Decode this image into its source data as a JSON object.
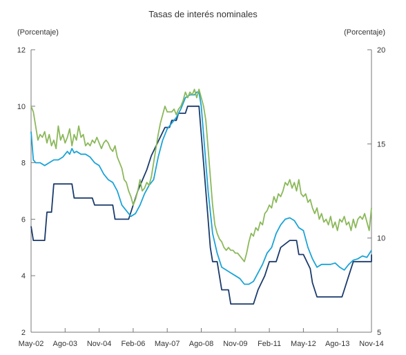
{
  "chart_data": {
    "type": "line",
    "title": "Tasas de interés nominales",
    "ylabel_left": "(Porcentaje)",
    "ylabel_right": "(Porcentaje)",
    "y_left_lim": [
      2,
      12
    ],
    "y_left_ticks": [
      "2",
      "4",
      "6",
      "8",
      "10",
      "12"
    ],
    "y_right_lim": [
      5,
      20
    ],
    "y_right_ticks": [
      "5",
      "10",
      "15",
      "20"
    ],
    "x_range": [
      0,
      150
    ],
    "x_ticks": [
      {
        "x": 0,
        "label": "May-02"
      },
      {
        "x": 15,
        "label": "Ago-03"
      },
      {
        "x": 30,
        "label": "Nov-04"
      },
      {
        "x": 45,
        "label": "Feb-06"
      },
      {
        "x": 60,
        "label": "May-07"
      },
      {
        "x": 75,
        "label": "Ago-08"
      },
      {
        "x": 90,
        "label": "Nov-09"
      },
      {
        "x": 105,
        "label": "Feb-11"
      },
      {
        "x": 120,
        "label": "May-12"
      },
      {
        "x": 135,
        "label": "Ago-13"
      },
      {
        "x": 150,
        "label": "Nov-14"
      }
    ],
    "series": [
      {
        "color": "#1a3a6b",
        "axis": "left",
        "points": [
          [
            0,
            5.75
          ],
          [
            1,
            5.25
          ],
          [
            6,
            5.25
          ],
          [
            7,
            6.25
          ],
          [
            9,
            6.25
          ],
          [
            10,
            7.25
          ],
          [
            18,
            7.25
          ],
          [
            19,
            6.75
          ],
          [
            27,
            6.75
          ],
          [
            28,
            6.5
          ],
          [
            36,
            6.5
          ],
          [
            37,
            6.0
          ],
          [
            43,
            6.0
          ],
          [
            45,
            6.5
          ],
          [
            47,
            7.0
          ],
          [
            51,
            7.75
          ],
          [
            53,
            8.25
          ],
          [
            56,
            8.75
          ],
          [
            59,
            9.25
          ],
          [
            61,
            9.25
          ],
          [
            62,
            9.5
          ],
          [
            64,
            9.5
          ],
          [
            65,
            9.75
          ],
          [
            68,
            9.75
          ],
          [
            69,
            10.0
          ],
          [
            73,
            10.0
          ],
          [
            74,
            10.0
          ],
          [
            75,
            9.0
          ],
          [
            76,
            8.0
          ],
          [
            77,
            7.0
          ],
          [
            78,
            6.0
          ],
          [
            79,
            5.0
          ],
          [
            80,
            4.5
          ],
          [
            82,
            4.5
          ],
          [
            83,
            4.0
          ],
          [
            84,
            3.5
          ],
          [
            87,
            3.5
          ],
          [
            88,
            3.0
          ],
          [
            98,
            3.0
          ],
          [
            100,
            3.5
          ],
          [
            103,
            4.0
          ],
          [
            105,
            4.5
          ],
          [
            108,
            4.5
          ],
          [
            110,
            5.0
          ],
          [
            114,
            5.25
          ],
          [
            117,
            5.25
          ],
          [
            118,
            4.75
          ],
          [
            120,
            4.75
          ],
          [
            123,
            4.25
          ],
          [
            124,
            3.75
          ],
          [
            126,
            3.25
          ],
          [
            137,
            3.25
          ],
          [
            138,
            3.5
          ],
          [
            140,
            4.0
          ],
          [
            142,
            4.5
          ],
          [
            150,
            4.5
          ],
          [
            150,
            4.75
          ]
        ]
      },
      {
        "color": "#1aa3d6",
        "axis": "left",
        "points": [
          [
            0,
            9.1
          ],
          [
            1,
            8.1
          ],
          [
            2,
            8.0
          ],
          [
            4,
            8.0
          ],
          [
            6,
            7.9
          ],
          [
            8,
            8.0
          ],
          [
            10,
            8.1
          ],
          [
            12,
            8.1
          ],
          [
            14,
            8.2
          ],
          [
            16,
            8.4
          ],
          [
            17,
            8.3
          ],
          [
            18,
            8.5
          ],
          [
            19,
            8.35
          ],
          [
            20,
            8.4
          ],
          [
            22,
            8.3
          ],
          [
            24,
            8.3
          ],
          [
            26,
            8.2
          ],
          [
            28,
            8.0
          ],
          [
            30,
            7.9
          ],
          [
            32,
            7.6
          ],
          [
            34,
            7.4
          ],
          [
            36,
            7.3
          ],
          [
            38,
            7.0
          ],
          [
            40,
            6.5
          ],
          [
            42,
            6.3
          ],
          [
            44,
            6.1
          ],
          [
            46,
            6.2
          ],
          [
            48,
            6.5
          ],
          [
            50,
            6.9
          ],
          [
            52,
            7.2
          ],
          [
            54,
            7.4
          ],
          [
            56,
            8.2
          ],
          [
            58,
            8.8
          ],
          [
            60,
            9.2
          ],
          [
            62,
            9.4
          ],
          [
            64,
            9.6
          ],
          [
            66,
            9.9
          ],
          [
            68,
            10.3
          ],
          [
            70,
            10.4
          ],
          [
            72,
            10.4
          ],
          [
            73,
            10.5
          ],
          [
            74,
            10.5
          ],
          [
            75,
            10.0
          ],
          [
            76,
            9.0
          ],
          [
            78,
            7.0
          ],
          [
            80,
            5.5
          ],
          [
            82,
            4.8
          ],
          [
            84,
            4.3
          ],
          [
            86,
            4.2
          ],
          [
            88,
            4.1
          ],
          [
            90,
            4.0
          ],
          [
            92,
            3.9
          ],
          [
            94,
            3.7
          ],
          [
            96,
            3.7
          ],
          [
            98,
            3.8
          ],
          [
            100,
            4.1
          ],
          [
            102,
            4.4
          ],
          [
            104,
            4.8
          ],
          [
            106,
            5.0
          ],
          [
            108,
            5.5
          ],
          [
            110,
            5.8
          ],
          [
            112,
            6.0
          ],
          [
            114,
            6.05
          ],
          [
            116,
            5.95
          ],
          [
            118,
            5.7
          ],
          [
            120,
            5.6
          ],
          [
            122,
            5.0
          ],
          [
            124,
            4.6
          ],
          [
            126,
            4.3
          ],
          [
            128,
            4.4
          ],
          [
            130,
            4.4
          ],
          [
            132,
            4.4
          ],
          [
            134,
            4.45
          ],
          [
            136,
            4.3
          ],
          [
            138,
            4.2
          ],
          [
            140,
            4.4
          ],
          [
            142,
            4.55
          ],
          [
            144,
            4.6
          ],
          [
            146,
            4.7
          ],
          [
            148,
            4.65
          ],
          [
            150,
            4.9
          ]
        ]
      },
      {
        "color": "#8bb85a",
        "axis": "left",
        "points": [
          [
            0,
            10.0
          ],
          [
            1,
            9.8
          ],
          [
            2,
            9.3
          ],
          [
            3,
            8.8
          ],
          [
            4,
            9.0
          ],
          [
            5,
            8.9
          ],
          [
            6,
            9.1
          ],
          [
            7,
            8.7
          ],
          [
            8,
            9.0
          ],
          [
            9,
            8.6
          ],
          [
            10,
            8.8
          ],
          [
            11,
            8.5
          ],
          [
            12,
            9.3
          ],
          [
            13,
            8.8
          ],
          [
            14,
            9.0
          ],
          [
            15,
            8.7
          ],
          [
            16,
            8.9
          ],
          [
            17,
            9.2
          ],
          [
            18,
            8.6
          ],
          [
            19,
            9.0
          ],
          [
            20,
            8.8
          ],
          [
            21,
            9.3
          ],
          [
            22,
            8.9
          ],
          [
            23,
            9.0
          ],
          [
            24,
            8.6
          ],
          [
            25,
            8.7
          ],
          [
            26,
            8.6
          ],
          [
            27,
            8.8
          ],
          [
            28,
            8.7
          ],
          [
            29,
            8.9
          ],
          [
            30,
            8.7
          ],
          [
            31,
            8.5
          ],
          [
            32,
            8.7
          ],
          [
            33,
            8.8
          ],
          [
            34,
            8.7
          ],
          [
            35,
            8.5
          ],
          [
            36,
            8.4
          ],
          [
            37,
            8.6
          ],
          [
            38,
            8.2
          ],
          [
            39,
            8.0
          ],
          [
            40,
            7.8
          ],
          [
            41,
            7.4
          ],
          [
            42,
            7.3
          ],
          [
            43,
            7.0
          ],
          [
            44,
            6.8
          ],
          [
            45,
            6.5
          ],
          [
            46,
            6.7
          ],
          [
            47,
            7.0
          ],
          [
            48,
            7.4
          ],
          [
            49,
            7.0
          ],
          [
            50,
            7.1
          ],
          [
            51,
            7.3
          ],
          [
            52,
            7.2
          ],
          [
            53,
            7.5
          ],
          [
            54,
            8.0
          ],
          [
            55,
            8.5
          ],
          [
            56,
            9.0
          ],
          [
            57,
            9.4
          ],
          [
            58,
            9.7
          ],
          [
            59,
            10.0
          ],
          [
            60,
            9.8
          ],
          [
            61,
            9.8
          ],
          [
            62,
            9.8
          ],
          [
            63,
            9.9
          ],
          [
            64,
            9.7
          ],
          [
            65,
            9.9
          ],
          [
            66,
            10.0
          ],
          [
            67,
            10.2
          ],
          [
            68,
            10.5
          ],
          [
            69,
            10.3
          ],
          [
            70,
            10.5
          ],
          [
            71,
            10.4
          ],
          [
            72,
            10.6
          ],
          [
            73,
            10.3
          ],
          [
            74,
            10.6
          ],
          [
            75,
            10.3
          ],
          [
            76,
            10.0
          ],
          [
            77,
            9.5
          ],
          [
            78,
            8.5
          ],
          [
            79,
            7.5
          ],
          [
            80,
            6.5
          ],
          [
            81,
            5.8
          ],
          [
            82,
            5.5
          ],
          [
            83,
            5.3
          ],
          [
            84,
            5.2
          ],
          [
            85,
            5.0
          ],
          [
            86,
            4.9
          ],
          [
            87,
            5.0
          ],
          [
            88,
            4.9
          ],
          [
            89,
            4.9
          ],
          [
            90,
            4.8
          ],
          [
            91,
            4.8
          ],
          [
            92,
            4.7
          ],
          [
            93,
            4.6
          ],
          [
            94,
            4.5
          ],
          [
            95,
            4.8
          ],
          [
            96,
            5.2
          ],
          [
            97,
            5.5
          ],
          [
            98,
            5.4
          ],
          [
            99,
            5.7
          ],
          [
            100,
            5.6
          ],
          [
            101,
            5.9
          ],
          [
            102,
            5.8
          ],
          [
            103,
            6.2
          ],
          [
            104,
            6.3
          ],
          [
            105,
            6.5
          ],
          [
            106,
            6.4
          ],
          [
            107,
            6.8
          ],
          [
            108,
            6.6
          ],
          [
            109,
            6.9
          ],
          [
            110,
            6.8
          ],
          [
            111,
            7.0
          ],
          [
            112,
            7.3
          ],
          [
            113,
            7.2
          ],
          [
            114,
            7.4
          ],
          [
            115,
            7.1
          ],
          [
            116,
            7.3
          ],
          [
            117,
            7.0
          ],
          [
            118,
            7.4
          ],
          [
            119,
            6.9
          ],
          [
            120,
            6.8
          ],
          [
            121,
            6.9
          ],
          [
            122,
            6.6
          ],
          [
            123,
            6.7
          ],
          [
            124,
            6.4
          ],
          [
            125,
            6.2
          ],
          [
            126,
            6.4
          ],
          [
            127,
            6.0
          ],
          [
            128,
            6.2
          ],
          [
            129,
            5.9
          ],
          [
            130,
            6.0
          ],
          [
            131,
            5.8
          ],
          [
            132,
            6.1
          ],
          [
            133,
            5.7
          ],
          [
            134,
            5.9
          ],
          [
            135,
            5.6
          ],
          [
            136,
            6.0
          ],
          [
            137,
            5.9
          ],
          [
            138,
            6.1
          ],
          [
            139,
            5.8
          ],
          [
            140,
            5.9
          ],
          [
            141,
            5.6
          ],
          [
            142,
            6.0
          ],
          [
            143,
            5.7
          ],
          [
            144,
            6.0
          ],
          [
            145,
            6.1
          ],
          [
            146,
            6.0
          ],
          [
            147,
            6.2
          ],
          [
            148,
            5.9
          ],
          [
            149,
            5.6
          ],
          [
            150,
            6.4
          ]
        ]
      }
    ]
  }
}
